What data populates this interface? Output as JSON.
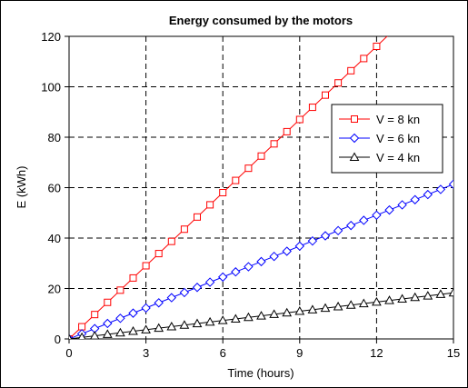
{
  "chart_data": {
    "type": "line",
    "title": "Energy consumed by the motors",
    "xlabel": "Time (hours)",
    "ylabel": "E (kWh)",
    "xlim": [
      0,
      15
    ],
    "ylim": [
      0,
      120
    ],
    "xticks": [
      "0",
      "3",
      "6",
      "9",
      "12",
      "15"
    ],
    "yticks": [
      "0",
      "20",
      "40",
      "60",
      "80",
      "100",
      "120"
    ],
    "grid": true,
    "legend_position": "right",
    "x_step": 0.5,
    "series": [
      {
        "name": "V = 8 kn",
        "color": "#ff0000",
        "marker": "square",
        "slope_kwh_per_hour": 9.67,
        "x_end": 12.5
      },
      {
        "name": "V = 6 kn",
        "color": "#0000ff",
        "marker": "diamond",
        "slope_kwh_per_hour": 4.09,
        "x_end": 15
      },
      {
        "name": "V = 4 kn",
        "color": "#000000",
        "marker": "triangle",
        "slope_kwh_per_hour": 1.22,
        "x_end": 15
      }
    ]
  }
}
